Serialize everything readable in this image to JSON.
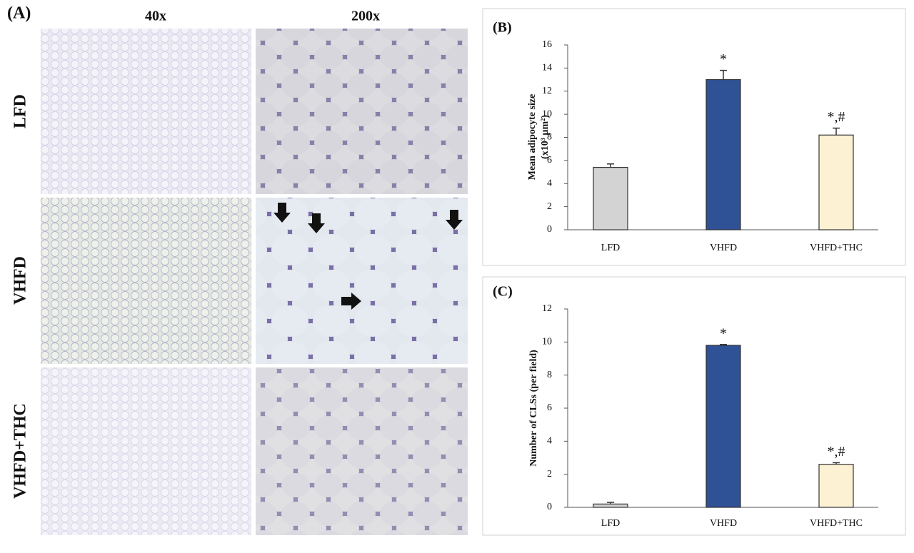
{
  "panel_a": {
    "label": "(A)",
    "columns": [
      "40x",
      "200x"
    ],
    "rows": [
      "LFD",
      "VHFD",
      "VHFD+THC"
    ]
  },
  "chart_data": [
    {
      "type": "bar",
      "title": "(B)",
      "ylabel": [
        "Mean adipocyte size",
        "(x10³ µm²)"
      ],
      "categories": [
        "LFD",
        "VHFD",
        "VHFD+THC"
      ],
      "values": [
        5.4,
        13.0,
        8.2
      ],
      "errors": [
        0.3,
        0.8,
        0.6
      ],
      "value_annotations": [
        null,
        "*",
        "*,#"
      ],
      "colors": [
        "#d3d3d3",
        "#2f5196",
        "#fdf1d3"
      ],
      "ylim": [
        0,
        16
      ],
      "yticks": [
        0,
        2,
        4,
        6,
        8,
        10,
        12,
        14,
        16
      ]
    },
    {
      "type": "bar",
      "title": "(C)",
      "ylabel": [
        "Number of CLSs (per field)"
      ],
      "categories": [
        "LFD",
        "VHFD",
        "VHFD+THC"
      ],
      "values": [
        0.2,
        9.8,
        2.6
      ],
      "errors": [
        0.1,
        0.05,
        0.1
      ],
      "value_annotations": [
        null,
        "*",
        "*,#"
      ],
      "colors": [
        "#d3d3d3",
        "#2f5196",
        "#fdf1d3"
      ],
      "ylim": [
        0,
        12
      ],
      "yticks": [
        0,
        2,
        4,
        6,
        8,
        10,
        12
      ]
    }
  ]
}
